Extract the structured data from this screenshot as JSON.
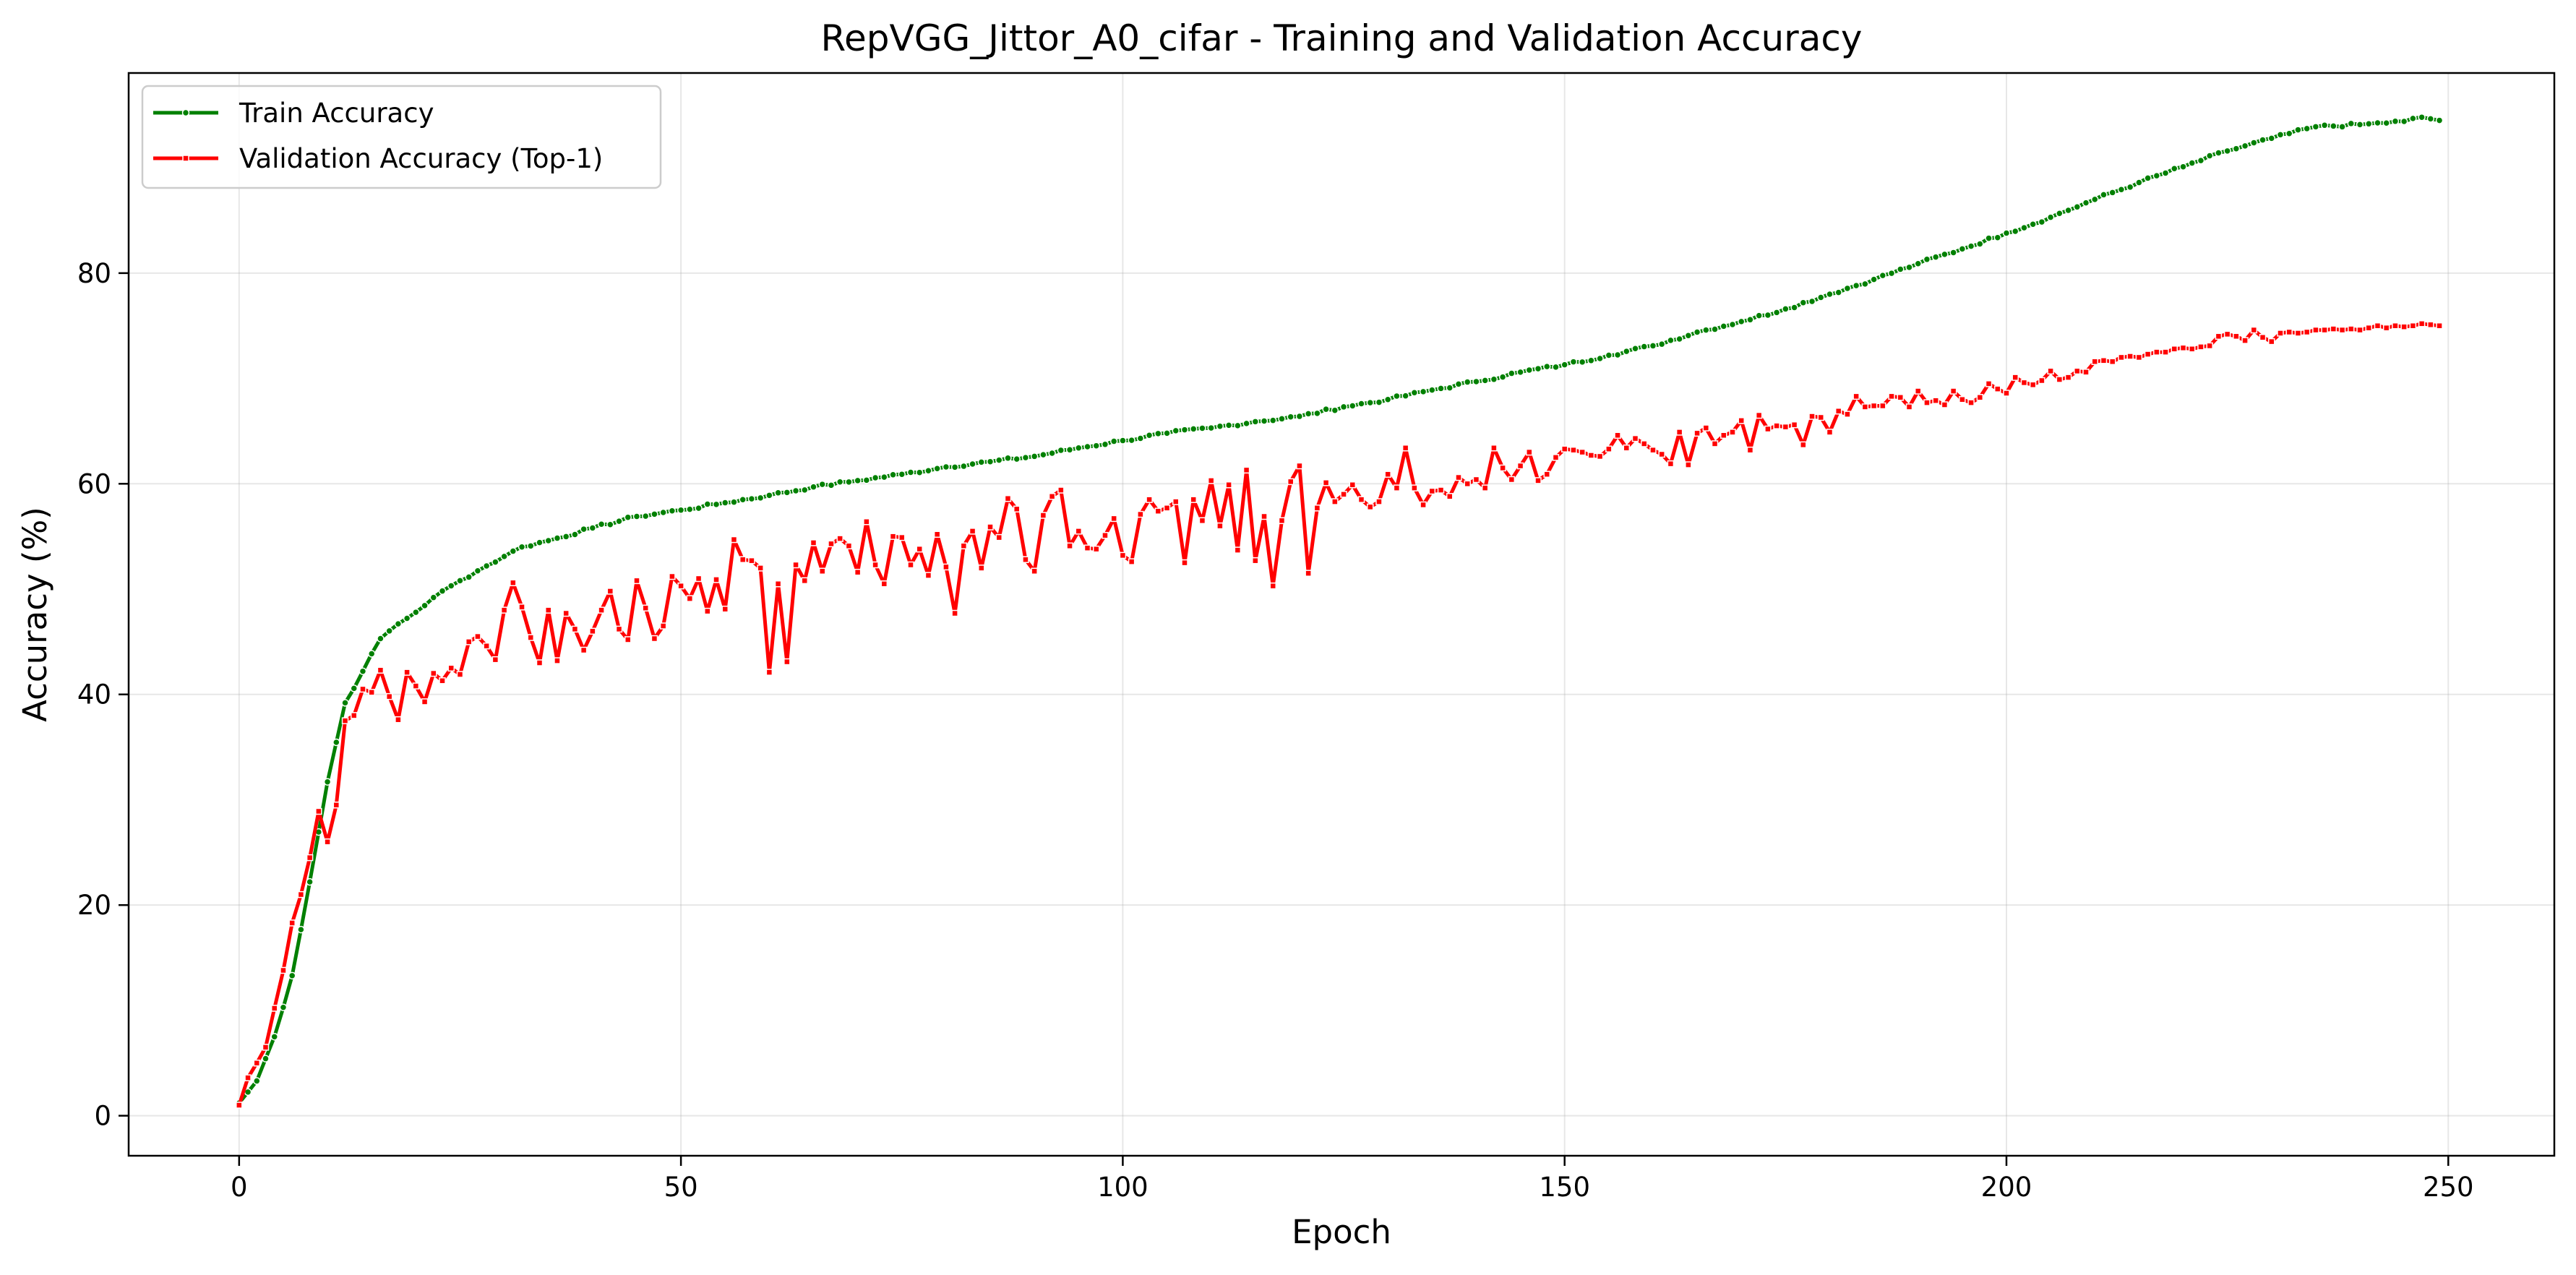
{
  "chart_data": {
    "type": "line",
    "title": "RepVGG_Jittor_A0_cifar - Training and Validation Accuracy",
    "xlabel": "Epoch",
    "ylabel": "Accuracy (%)",
    "xlim": [
      -12.5,
      262
    ],
    "ylim": [
      -3.8,
      99
    ],
    "xticks": [
      0,
      50,
      100,
      150,
      200,
      250
    ],
    "yticks": [
      0,
      20,
      40,
      60,
      80
    ],
    "grid": true,
    "legend_position": "top-left",
    "series": [
      {
        "name": "Train Accuracy",
        "color": "#008000",
        "marker": "circle",
        "anchors": [
          [
            0,
            1.2
          ],
          [
            2,
            3.3
          ],
          [
            4,
            7.5
          ],
          [
            6,
            13.3
          ],
          [
            8,
            22.2
          ],
          [
            10,
            31.7
          ],
          [
            12,
            39.2
          ],
          [
            14,
            42.2
          ],
          [
            16,
            45.3
          ],
          [
            18,
            46.7
          ],
          [
            20,
            47.8
          ],
          [
            22,
            49.2
          ],
          [
            25,
            50.8
          ],
          [
            28,
            52.2
          ],
          [
            30,
            53.1
          ],
          [
            32,
            54.0
          ],
          [
            35,
            54.6
          ],
          [
            40,
            55.8
          ],
          [
            45,
            56.9
          ],
          [
            50,
            57.5
          ],
          [
            55,
            58.2
          ],
          [
            60,
            58.9
          ],
          [
            65,
            59.7
          ],
          [
            70,
            60.3
          ],
          [
            75,
            60.9
          ],
          [
            80,
            61.6
          ],
          [
            85,
            62.1
          ],
          [
            90,
            62.6
          ],
          [
            95,
            63.4
          ],
          [
            100,
            64.1
          ],
          [
            105,
            64.8
          ],
          [
            110,
            65.3
          ],
          [
            115,
            65.9
          ],
          [
            120,
            66.4
          ],
          [
            125,
            67.3
          ],
          [
            130,
            68.0
          ],
          [
            135,
            68.9
          ],
          [
            140,
            69.7
          ],
          [
            145,
            70.6
          ],
          [
            150,
            71.3
          ],
          [
            155,
            72.2
          ],
          [
            160,
            73.1
          ],
          [
            165,
            74.4
          ],
          [
            170,
            75.4
          ],
          [
            175,
            76.6
          ],
          [
            180,
            78.0
          ],
          [
            185,
            79.4
          ],
          [
            190,
            80.9
          ],
          [
            195,
            82.3
          ],
          [
            200,
            83.8
          ],
          [
            205,
            85.3
          ],
          [
            210,
            87.0
          ],
          [
            215,
            88.6
          ],
          [
            220,
            90.1
          ],
          [
            225,
            91.6
          ],
          [
            230,
            92.8
          ],
          [
            235,
            93.9
          ],
          [
            240,
            94.1
          ],
          [
            245,
            94.4
          ],
          [
            247,
            94.8
          ],
          [
            249,
            94.5
          ]
        ],
        "noise": 0.15
      },
      {
        "name": "Validation Accuracy (Top-1)",
        "color": "#ff0000",
        "marker": "square",
        "points": [
          [
            0,
            1.0
          ],
          [
            1,
            3.6
          ],
          [
            2,
            5.0
          ],
          [
            3,
            6.5
          ],
          [
            4,
            10.2
          ],
          [
            5,
            13.8
          ],
          [
            6,
            18.3
          ],
          [
            7,
            21.0
          ],
          [
            8,
            24.5
          ],
          [
            9,
            28.9
          ],
          [
            10,
            26.0
          ],
          [
            11,
            29.5
          ],
          [
            12,
            37.5
          ],
          [
            13,
            38.0
          ],
          [
            14,
            40.5
          ],
          [
            15,
            40.2
          ],
          [
            16,
            42.3
          ],
          [
            17,
            39.8
          ],
          [
            18,
            37.6
          ],
          [
            19,
            42.1
          ],
          [
            20,
            40.8
          ],
          [
            21,
            39.3
          ],
          [
            22,
            42.0
          ],
          [
            23,
            41.3
          ],
          [
            24,
            42.5
          ],
          [
            25,
            41.9
          ],
          [
            26,
            45.0
          ],
          [
            27,
            45.5
          ],
          [
            28,
            44.6
          ],
          [
            29,
            43.3
          ],
          [
            30,
            48.0
          ],
          [
            31,
            50.6
          ],
          [
            32,
            48.3
          ],
          [
            33,
            45.4
          ],
          [
            34,
            43.0
          ],
          [
            35,
            48.0
          ],
          [
            36,
            43.2
          ],
          [
            37,
            47.7
          ],
          [
            38,
            46.2
          ],
          [
            39,
            44.2
          ],
          [
            40,
            46.0
          ],
          [
            41,
            48.0
          ],
          [
            42,
            49.8
          ],
          [
            43,
            46.2
          ],
          [
            44,
            45.2
          ],
          [
            45,
            50.8
          ],
          [
            46,
            48.2
          ],
          [
            47,
            45.3
          ],
          [
            48,
            46.5
          ],
          [
            49,
            51.2
          ],
          [
            50,
            50.3
          ],
          [
            51,
            49.1
          ],
          [
            52,
            51.0
          ],
          [
            53,
            47.9
          ],
          [
            54,
            50.9
          ],
          [
            55,
            48.1
          ],
          [
            56,
            54.7
          ],
          [
            57,
            52.8
          ],
          [
            58,
            52.7
          ],
          [
            59,
            52.0
          ],
          [
            60,
            42.1
          ],
          [
            61,
            50.5
          ],
          [
            62,
            43.1
          ],
          [
            63,
            52.3
          ],
          [
            64,
            50.8
          ],
          [
            65,
            54.4
          ],
          [
            66,
            51.7
          ],
          [
            67,
            54.3
          ],
          [
            68,
            54.8
          ],
          [
            69,
            54.1
          ],
          [
            70,
            51.6
          ],
          [
            71,
            56.4
          ],
          [
            72,
            52.3
          ],
          [
            73,
            50.5
          ],
          [
            74,
            55.0
          ],
          [
            75,
            54.9
          ],
          [
            76,
            52.3
          ],
          [
            77,
            53.8
          ],
          [
            78,
            51.3
          ],
          [
            79,
            55.2
          ],
          [
            80,
            52.1
          ],
          [
            81,
            47.7
          ],
          [
            82,
            54.1
          ],
          [
            83,
            55.5
          ],
          [
            84,
            52.0
          ],
          [
            85,
            55.9
          ],
          [
            86,
            54.9
          ],
          [
            87,
            58.6
          ],
          [
            88,
            57.6
          ],
          [
            89,
            52.8
          ],
          [
            90,
            51.7
          ],
          [
            91,
            57.0
          ],
          [
            92,
            58.8
          ],
          [
            93,
            59.4
          ],
          [
            94,
            54.1
          ],
          [
            95,
            55.5
          ],
          [
            96,
            53.9
          ],
          [
            97,
            53.8
          ],
          [
            98,
            55.1
          ],
          [
            99,
            56.7
          ],
          [
            100,
            53.2
          ],
          [
            101,
            52.6
          ],
          [
            102,
            57.1
          ],
          [
            103,
            58.5
          ],
          [
            104,
            57.4
          ],
          [
            105,
            57.7
          ],
          [
            106,
            58.3
          ],
          [
            107,
            52.5
          ],
          [
            108,
            58.5
          ],
          [
            109,
            56.5
          ],
          [
            110,
            60.3
          ],
          [
            111,
            56.0
          ],
          [
            112,
            59.9
          ],
          [
            113,
            53.7
          ],
          [
            114,
            61.3
          ],
          [
            115,
            52.7
          ],
          [
            116,
            56.9
          ],
          [
            117,
            50.3
          ],
          [
            118,
            56.5
          ],
          [
            119,
            60.2
          ],
          [
            120,
            61.7
          ],
          [
            121,
            51.5
          ],
          [
            122,
            57.7
          ],
          [
            123,
            60.1
          ],
          [
            124,
            58.3
          ],
          [
            125,
            59.0
          ],
          [
            126,
            59.9
          ],
          [
            127,
            58.5
          ],
          [
            128,
            57.8
          ],
          [
            129,
            58.3
          ],
          [
            130,
            60.9
          ],
          [
            131,
            59.6
          ],
          [
            132,
            63.4
          ],
          [
            133,
            59.6
          ],
          [
            134,
            58.0
          ],
          [
            135,
            59.3
          ],
          [
            136,
            59.4
          ],
          [
            137,
            58.8
          ],
          [
            138,
            60.6
          ],
          [
            139,
            60.0
          ],
          [
            140,
            60.4
          ],
          [
            141,
            59.6
          ],
          [
            142,
            63.4
          ],
          [
            143,
            61.5
          ],
          [
            144,
            60.4
          ],
          [
            145,
            61.7
          ],
          [
            146,
            63.0
          ],
          [
            147,
            60.3
          ],
          [
            148,
            60.9
          ],
          [
            149,
            62.5
          ],
          [
            150,
            63.3
          ],
          [
            151,
            63.2
          ],
          [
            152,
            63.0
          ],
          [
            153,
            62.7
          ],
          [
            154,
            62.6
          ],
          [
            155,
            63.3
          ],
          [
            156,
            64.6
          ],
          [
            157,
            63.4
          ],
          [
            158,
            64.3
          ],
          [
            159,
            63.8
          ],
          [
            160,
            63.2
          ],
          [
            161,
            62.8
          ],
          [
            162,
            61.9
          ],
          [
            163,
            64.9
          ],
          [
            164,
            61.8
          ],
          [
            165,
            64.8
          ],
          [
            166,
            65.3
          ],
          [
            167,
            63.8
          ],
          [
            168,
            64.6
          ],
          [
            169,
            64.9
          ],
          [
            170,
            66.0
          ],
          [
            171,
            63.2
          ],
          [
            172,
            66.5
          ],
          [
            173,
            65.2
          ],
          [
            174,
            65.5
          ],
          [
            175,
            65.4
          ],
          [
            176,
            65.6
          ],
          [
            177,
            63.7
          ],
          [
            178,
            66.4
          ],
          [
            179,
            66.3
          ],
          [
            180,
            64.9
          ],
          [
            181,
            66.9
          ],
          [
            182,
            66.6
          ],
          [
            183,
            68.3
          ],
          [
            184,
            67.3
          ],
          [
            185,
            67.4
          ],
          [
            186,
            67.4
          ],
          [
            187,
            68.3
          ],
          [
            188,
            68.2
          ],
          [
            189,
            67.3
          ],
          [
            190,
            68.8
          ],
          [
            191,
            67.7
          ],
          [
            192,
            67.9
          ],
          [
            193,
            67.5
          ],
          [
            194,
            68.8
          ],
          [
            195,
            68.0
          ],
          [
            196,
            67.7
          ],
          [
            197,
            68.2
          ],
          [
            198,
            69.5
          ],
          [
            199,
            69.0
          ],
          [
            200,
            68.6
          ],
          [
            201,
            70.1
          ],
          [
            202,
            69.6
          ],
          [
            203,
            69.4
          ],
          [
            204,
            69.8
          ],
          [
            205,
            70.7
          ],
          [
            206,
            69.9
          ],
          [
            207,
            70.1
          ],
          [
            208,
            70.7
          ],
          [
            209,
            70.6
          ],
          [
            210,
            71.6
          ],
          [
            211,
            71.7
          ],
          [
            212,
            71.6
          ],
          [
            213,
            72.0
          ],
          [
            214,
            72.1
          ],
          [
            215,
            72.0
          ],
          [
            216,
            72.3
          ],
          [
            217,
            72.5
          ],
          [
            218,
            72.5
          ],
          [
            219,
            72.8
          ],
          [
            220,
            72.9
          ],
          [
            221,
            72.8
          ],
          [
            222,
            73.0
          ],
          [
            223,
            73.1
          ],
          [
            224,
            74.0
          ],
          [
            225,
            74.2
          ],
          [
            226,
            74.0
          ],
          [
            227,
            73.6
          ],
          [
            228,
            74.6
          ],
          [
            229,
            73.9
          ],
          [
            230,
            73.5
          ],
          [
            231,
            74.3
          ],
          [
            232,
            74.4
          ],
          [
            233,
            74.3
          ],
          [
            234,
            74.4
          ],
          [
            235,
            74.6
          ],
          [
            236,
            74.6
          ],
          [
            237,
            74.7
          ],
          [
            238,
            74.6
          ],
          [
            239,
            74.7
          ],
          [
            240,
            74.6
          ],
          [
            241,
            74.8
          ],
          [
            242,
            75.0
          ],
          [
            243,
            74.8
          ],
          [
            244,
            75.0
          ],
          [
            245,
            74.9
          ],
          [
            246,
            75.0
          ],
          [
            247,
            75.2
          ],
          [
            248,
            75.1
          ],
          [
            249,
            75.0
          ]
        ]
      }
    ]
  }
}
